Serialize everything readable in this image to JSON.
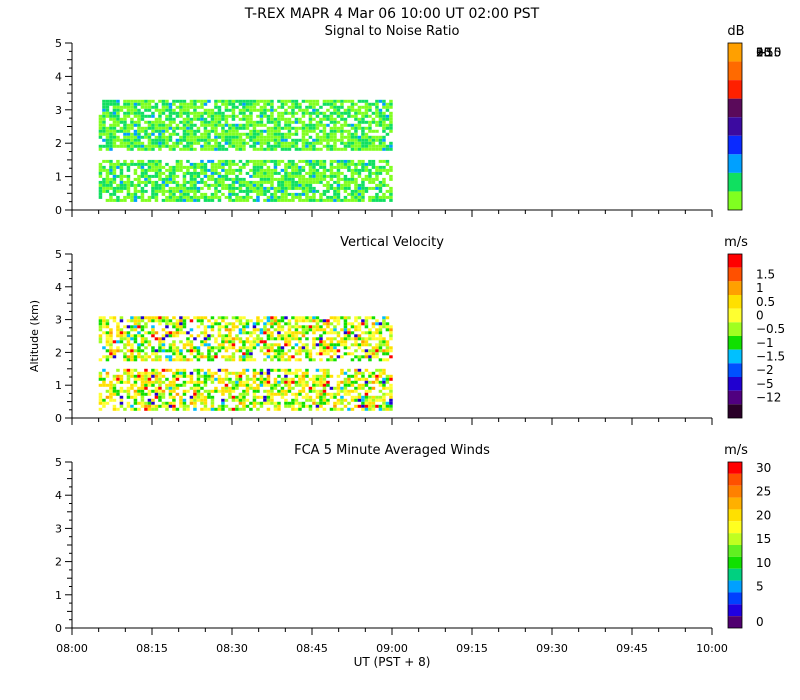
{
  "header": {
    "title": "T-REX   MAPR   4 Mar 06   10:00 UT   02:00   PST"
  },
  "x_axis": {
    "ticks": [
      "08:00",
      "08:15",
      "08:30",
      "08:45",
      "09:00",
      "09:15",
      "09:30",
      "09:45",
      "10:00"
    ],
    "label": "UT  (PST + 8)"
  },
  "chart_data": [
    {
      "type": "heatmap",
      "title": "Signal to Noise Ratio",
      "ylim": [
        0,
        5
      ],
      "y_ticks": [
        "0",
        "1",
        "2",
        "3",
        "4",
        "5"
      ],
      "xlim": [
        "08:00",
        "10:00"
      ],
      "data_extent_x": [
        "08:05",
        "09:00"
      ],
      "bands_km": [
        [
          0.3,
          1.5
        ],
        [
          1.8,
          3.3
        ]
      ],
      "colorbar": {
        "unit": "dB",
        "labels": [
          "25",
          "20",
          "15",
          "10",
          "5",
          "0",
          "−5",
          "−10",
          "−15"
        ],
        "colors": [
          "#ffa000",
          "#ff6a00",
          "#ff2000",
          "#5a0a5a",
          "#3c0aa0",
          "#0a2aff",
          "#00a0ff",
          "#10e060",
          "#80ff20"
        ],
        "label_offsets": [
          0,
          0,
          0,
          0,
          0,
          0,
          0,
          0,
          0
        ]
      }
    },
    {
      "type": "heatmap",
      "title": "Vertical Velocity",
      "ylabel": "Altitude (km)",
      "ylim": [
        0,
        5
      ],
      "y_ticks": [
        "0",
        "1",
        "2",
        "3",
        "4",
        "5"
      ],
      "xlim": [
        "08:00",
        "10:00"
      ],
      "data_extent_x": [
        "08:05",
        "09:00"
      ],
      "bands_km": [
        [
          0.3,
          1.5
        ],
        [
          1.8,
          3.1
        ]
      ],
      "colorbar": {
        "unit": "m/s",
        "labels": [
          "1.5",
          "1",
          "0.5",
          "0",
          "−0.5",
          "−1",
          "−1.5",
          "−2",
          "−5",
          "−12"
        ],
        "colors": [
          "#ff0000",
          "#ff5000",
          "#ffa000",
          "#ffe000",
          "#ffff30",
          "#a0ff20",
          "#10e000",
          "#00c0ff",
          "#0050ff",
          "#2000d0",
          "#500080",
          "#2a0028"
        ],
        "label_offsets": [
          1,
          2,
          3,
          4,
          5,
          6,
          7,
          8,
          9,
          10
        ]
      }
    },
    {
      "type": "heatmap",
      "title": "FCA 5 Minute Averaged Winds",
      "ylim": [
        0,
        5
      ],
      "y_ticks": [
        "0",
        "1",
        "2",
        "3",
        "4",
        "5"
      ],
      "xlim": [
        "08:00",
        "10:00"
      ],
      "colorbar": {
        "unit": "m/s",
        "labels": [
          "30",
          "25",
          "20",
          "15",
          "10",
          "5",
          "0"
        ],
        "colors": [
          "#ff0000",
          "#ff5000",
          "#ff8000",
          "#ffb000",
          "#ffe000",
          "#ffff20",
          "#c0ff20",
          "#60f020",
          "#10e000",
          "#00d080",
          "#00a0ff",
          "#0040ff",
          "#2000e0",
          "#500070"
        ],
        "label_offsets": [
          0,
          2,
          4,
          6,
          8,
          10,
          13
        ]
      }
    }
  ]
}
